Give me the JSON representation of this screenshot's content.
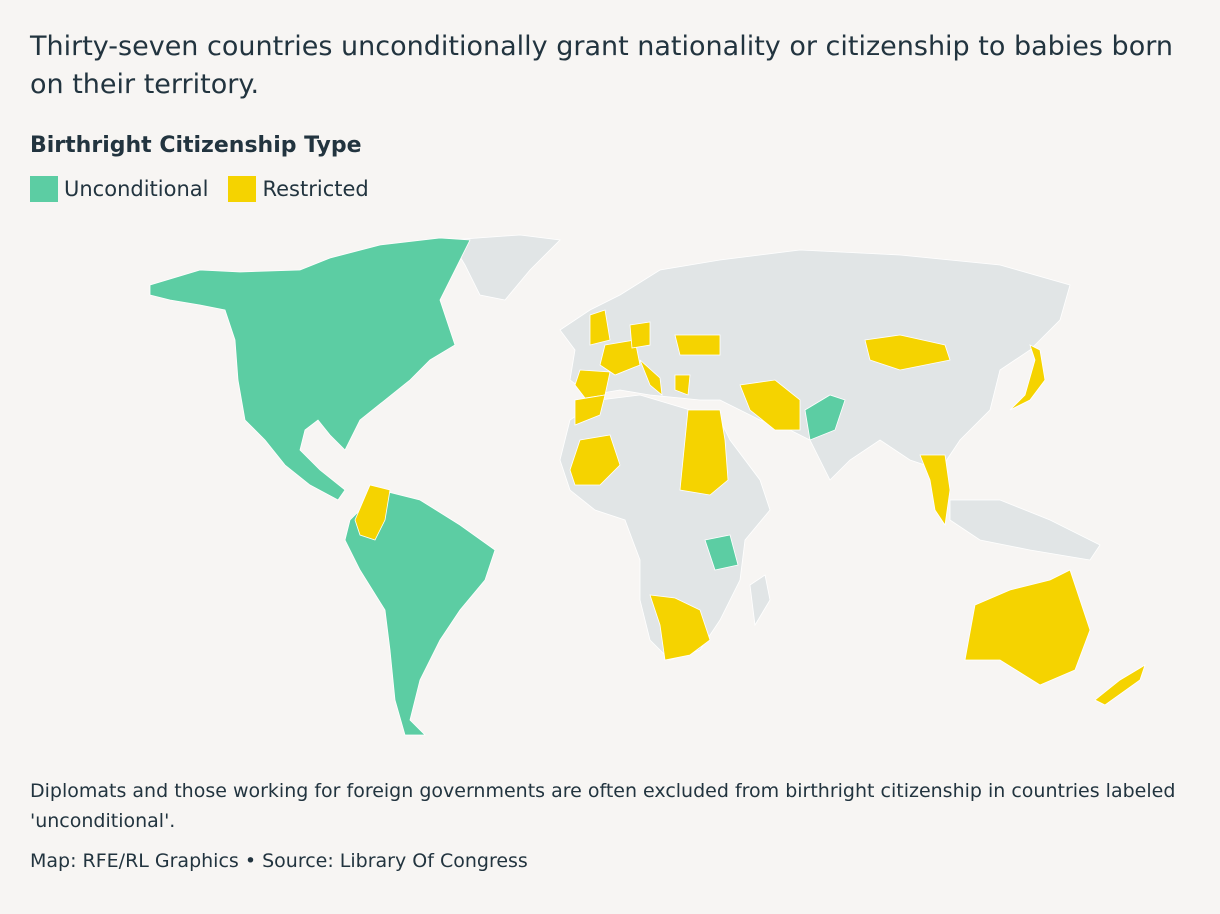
{
  "header": {
    "title": "Thirty-seven countries unconditionally grant nationality or citizenship to babies born on their territory."
  },
  "legend": {
    "title": "Birthright Citizenship Type",
    "items": [
      {
        "label": "Unconditional",
        "color": "#5ccda3"
      },
      {
        "label": "Restricted",
        "color": "#f5d300"
      }
    ]
  },
  "footer": {
    "note": "Diplomats and those working for foreign governments are often excluded from birthright citizenship in countries labeled 'unconditional'.",
    "source": "Map: RFE/RL Graphics • Source: Library Of Congress"
  }
}
